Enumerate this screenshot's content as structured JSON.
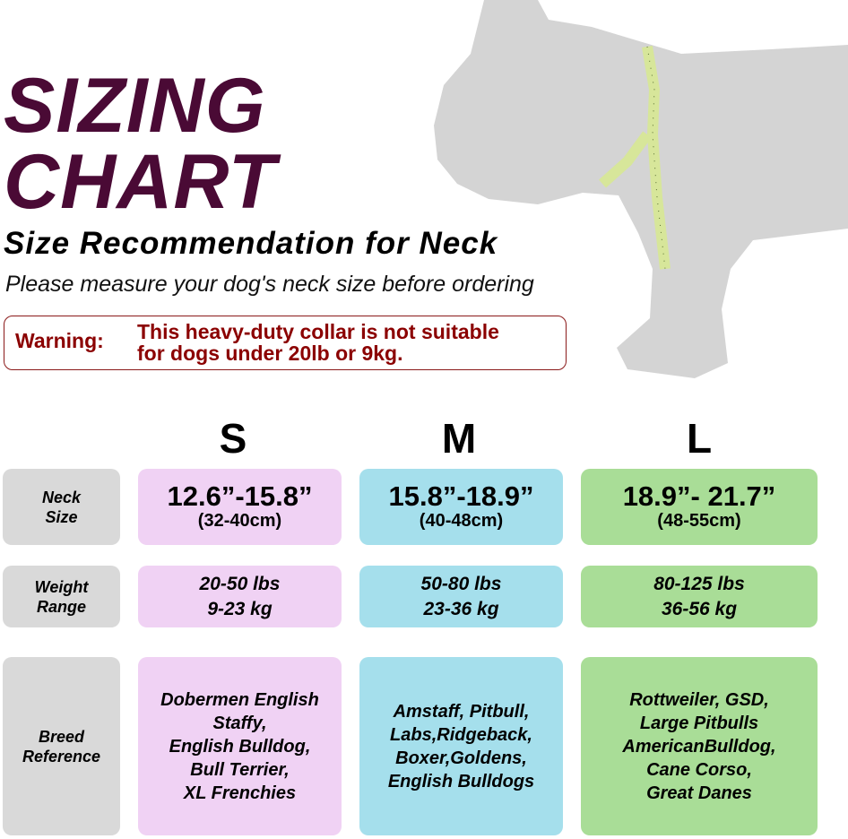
{
  "title": {
    "line1": "SIZING",
    "line2": "CHART"
  },
  "subtitle": "Size Recommendation for Neck",
  "instruction": "Please measure your dog's neck size before ordering",
  "warning": {
    "label": "Warning:",
    "line1": "This heavy-duty collar is not suitable",
    "line2": "for dogs under 20lb or 9kg."
  },
  "colors": {
    "title": "#4a0a35",
    "warning": "#8b0000",
    "label_bg": "#d9d9d9",
    "s": "#f0d2f4",
    "m": "#a5dfec",
    "l": "#a9dd97",
    "dog": "#d4d4d4",
    "tape": "#d7e69a"
  },
  "sizes": [
    "S",
    "M",
    "L"
  ],
  "row_labels": {
    "neck": [
      "Neck",
      "Size"
    ],
    "weight": [
      "Weight",
      "Range"
    ],
    "breed": [
      "Breed",
      "Reference"
    ]
  },
  "neck": [
    {
      "in": "12.6”-15.8”",
      "cm": "(32-40cm)"
    },
    {
      "in": "15.8”-18.9”",
      "cm": "(40-48cm)"
    },
    {
      "in": "18.9”- 21.7”",
      "cm": "(48-55cm)"
    }
  ],
  "weight": [
    {
      "lbs": "20-50 lbs",
      "kg": "9-23 kg"
    },
    {
      "lbs": "50-80 lbs",
      "kg": "23-36 kg"
    },
    {
      "lbs": "80-125 lbs",
      "kg": "36-56 kg"
    }
  ],
  "breeds": [
    [
      "Dobermen English",
      "Staffy,",
      "English Bulldog,",
      "Bull Terrier,",
      "XL Frenchies"
    ],
    [
      "Amstaff, Pitbull,",
      "Labs,Ridgeback,",
      "Boxer,Goldens,",
      "English Bulldogs"
    ],
    [
      "Rottweiler, GSD,",
      "Large Pitbulls",
      "AmericanBulldog,",
      "Cane Corso,",
      "Great Danes"
    ]
  ]
}
